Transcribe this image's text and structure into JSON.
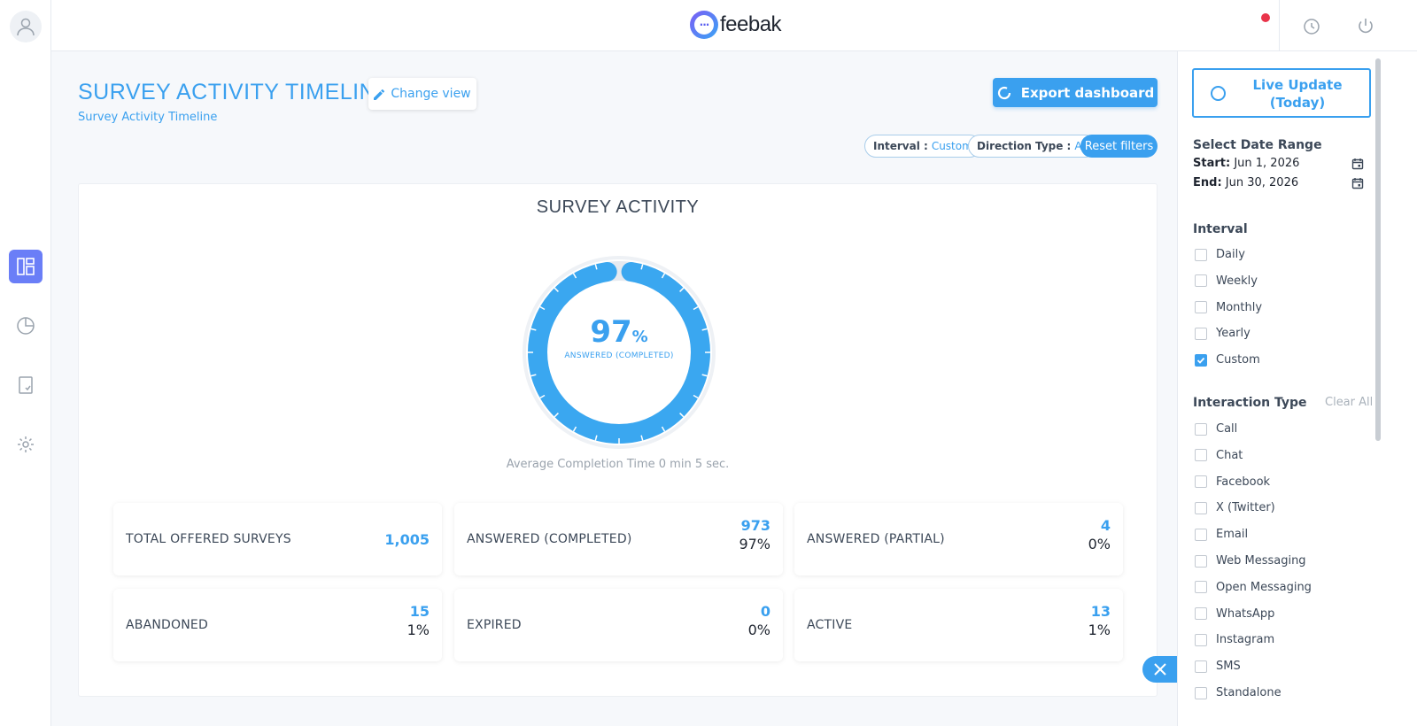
{
  "brand": {
    "name": "feebak"
  },
  "header": {
    "title": "SURVEY ACTIVITY TIMELINE",
    "subtitle": "Survey Activity Timeline",
    "change_view_label": "Change view",
    "export_label": "Export dashboard"
  },
  "filters": {
    "interval_label": "Interval :",
    "interval_value": "Custom",
    "direction_label": "Direction Type :",
    "direction_value": "All",
    "reset_label": "Reset filters"
  },
  "card": {
    "title": "SURVEY ACTIVITY",
    "donut_value": 97,
    "donut_unit": "%",
    "donut_label": "ANSWERED (COMPLETED)",
    "avg_completion": "Average Completion Time 0 min 5 sec."
  },
  "stats": [
    {
      "label": "TOTAL OFFERED SURVEYS",
      "count": "1,005",
      "pct": ""
    },
    {
      "label": "ANSWERED (COMPLETED)",
      "count": "973",
      "pct": "97%"
    },
    {
      "label": "ANSWERED (PARTIAL)",
      "count": "4",
      "pct": "0%"
    },
    {
      "label": "ABANDONED",
      "count": "15",
      "pct": "1%"
    },
    {
      "label": "EXPIRED",
      "count": "0",
      "pct": "0%"
    },
    {
      "label": "ACTIVE",
      "count": "13",
      "pct": "1%"
    }
  ],
  "panel": {
    "live_update": "Live Update (Today)",
    "date_range_title": "Select Date Range",
    "start_label": "Start:",
    "start_value": "Jun 1, 2026",
    "end_label": "End:",
    "end_value": "Jun 30, 2026",
    "interval_title": "Interval",
    "intervals": [
      {
        "label": "Daily",
        "checked": false
      },
      {
        "label": "Weekly",
        "checked": false
      },
      {
        "label": "Monthly",
        "checked": false
      },
      {
        "label": "Yearly",
        "checked": false
      },
      {
        "label": "Custom",
        "checked": true
      }
    ],
    "interaction_title": "Interaction Type",
    "clear_all": "Clear All",
    "interactions": [
      {
        "label": "Call",
        "checked": false
      },
      {
        "label": "Chat",
        "checked": false
      },
      {
        "label": "Facebook",
        "checked": false
      },
      {
        "label": "X (Twitter)",
        "checked": false
      },
      {
        "label": "Email",
        "checked": false
      },
      {
        "label": "Web Messaging",
        "checked": false
      },
      {
        "label": "Open Messaging",
        "checked": false
      },
      {
        "label": "WhatsApp",
        "checked": false
      },
      {
        "label": "Instagram",
        "checked": false
      },
      {
        "label": "SMS",
        "checked": false
      },
      {
        "label": "Standalone",
        "checked": false
      }
    ]
  },
  "colors": {
    "accent": "#3aa0ef",
    "nav_active": "#6a7ef7",
    "notification": "#e9344a"
  },
  "icons": {
    "rail": [
      "user-avatar-icon",
      "dashboard-icon",
      "pie-chart-icon",
      "report-icon",
      "gear-icon"
    ],
    "top": [
      "timer-icon",
      "power-icon"
    ]
  }
}
